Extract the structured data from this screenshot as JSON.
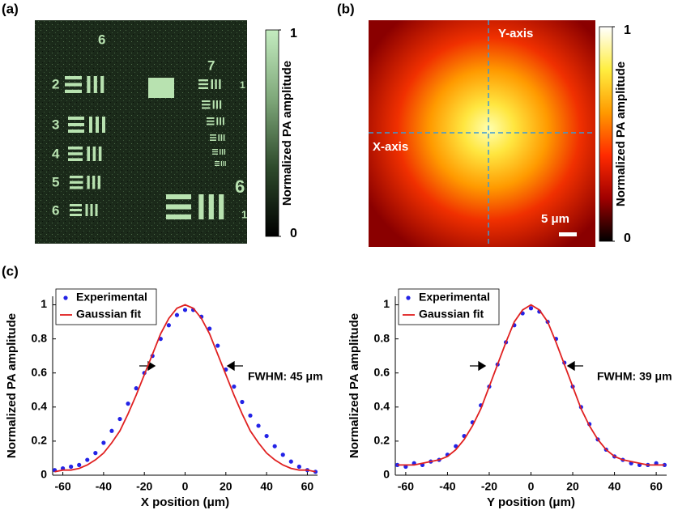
{
  "chart_data": [
    {
      "type": "image",
      "label": "(a)",
      "target_labels": [
        "6",
        "2",
        "3",
        "4",
        "5",
        "6",
        "7",
        "1",
        "6",
        "1"
      ],
      "colorbar": {
        "label": "Normalized PA amplitude",
        "lim": [
          0,
          1
        ],
        "ticks": [
          0,
          1
        ],
        "colors": [
          "#000000",
          "#2e4a2c",
          "#7fa87a",
          "#c4ecc0"
        ]
      }
    },
    {
      "type": "heatmap",
      "label": "(b)",
      "annotations": [
        "Y-axis",
        "X-axis"
      ],
      "scale_bar": "5 μm",
      "colorbar": {
        "label": "Normalized PA amplitude",
        "lim": [
          0,
          1
        ],
        "ticks": [
          0,
          1
        ],
        "colors": [
          "#000000",
          "#a00000",
          "#ff2a00",
          "#ff9a00",
          "#ffee40",
          "#ffffff"
        ]
      }
    },
    {
      "type": "scatter",
      "label": "(c)",
      "xlabel": "X position (μm)",
      "ylabel": "Normalized PA amplitude",
      "annotation": "FWHM: 45 μm",
      "xlim": [
        -65,
        65
      ],
      "ylim": [
        0,
        1.05
      ],
      "xticks": [
        -60,
        -40,
        -20,
        0,
        20,
        40,
        60
      ],
      "yticks": [
        0,
        0.2,
        0.4,
        0.6,
        0.8,
        1
      ],
      "series": [
        {
          "name": "Experimental",
          "mode": "markers",
          "color": "#2323e6",
          "x": [
            -64,
            -60,
            -56,
            -52,
            -48,
            -44,
            -40,
            -36,
            -32,
            -28,
            -24,
            -20,
            -16,
            -12,
            -8,
            -4,
            0,
            4,
            8,
            12,
            16,
            20,
            24,
            28,
            32,
            36,
            40,
            44,
            48,
            52,
            56,
            60,
            64
          ],
          "values": [
            0.03,
            0.04,
            0.05,
            0.06,
            0.09,
            0.13,
            0.19,
            0.26,
            0.33,
            0.42,
            0.51,
            0.6,
            0.7,
            0.8,
            0.88,
            0.94,
            0.97,
            0.97,
            0.93,
            0.86,
            0.76,
            0.62,
            0.52,
            0.43,
            0.35,
            0.29,
            0.23,
            0.17,
            0.12,
            0.08,
            0.05,
            0.03,
            0.02
          ]
        },
        {
          "name": "Gaussian fit",
          "mode": "line",
          "color": "#e02020",
          "x": [
            -64,
            -60,
            -56,
            -52,
            -48,
            -44,
            -40,
            -36,
            -32,
            -28,
            -24,
            -20,
            -16,
            -12,
            -8,
            -4,
            0,
            4,
            8,
            12,
            16,
            20,
            24,
            28,
            32,
            36,
            40,
            44,
            48,
            52,
            56,
            60,
            64
          ],
          "values": [
            0.02,
            0.03,
            0.03,
            0.04,
            0.06,
            0.09,
            0.13,
            0.19,
            0.26,
            0.36,
            0.47,
            0.59,
            0.71,
            0.83,
            0.92,
            0.98,
            1,
            0.98,
            0.92,
            0.83,
            0.71,
            0.59,
            0.47,
            0.36,
            0.26,
            0.19,
            0.13,
            0.09,
            0.06,
            0.04,
            0.03,
            0.03,
            0.02
          ]
        }
      ]
    },
    {
      "type": "scatter",
      "xlabel": "Y position (μm)",
      "ylabel": "Normalized PA amplitude",
      "annotation": "FWHM: 39 μm",
      "xlim": [
        -65,
        65
      ],
      "ylim": [
        0,
        1.05
      ],
      "xticks": [
        -60,
        -40,
        -20,
        0,
        20,
        40,
        60
      ],
      "yticks": [
        0,
        0.2,
        0.4,
        0.6,
        0.8,
        1
      ],
      "series": [
        {
          "name": "Experimental",
          "mode": "markers",
          "color": "#2323e6",
          "x": [
            -64,
            -60,
            -56,
            -52,
            -48,
            -44,
            -40,
            -36,
            -32,
            -28,
            -24,
            -20,
            -16,
            -12,
            -8,
            -4,
            0,
            4,
            8,
            12,
            16,
            20,
            24,
            28,
            32,
            36,
            40,
            44,
            48,
            52,
            56,
            60,
            64
          ],
          "values": [
            0.06,
            0.05,
            0.07,
            0.06,
            0.08,
            0.09,
            0.12,
            0.17,
            0.23,
            0.31,
            0.41,
            0.52,
            0.65,
            0.78,
            0.88,
            0.95,
            0.98,
            0.96,
            0.9,
            0.8,
            0.66,
            0.52,
            0.4,
            0.3,
            0.21,
            0.15,
            0.11,
            0.09,
            0.07,
            0.06,
            0.06,
            0.07,
            0.06
          ]
        },
        {
          "name": "Gaussian fit",
          "mode": "line",
          "color": "#e02020",
          "x": [
            -64,
            -60,
            -56,
            -52,
            -48,
            -44,
            -40,
            -36,
            -32,
            -28,
            -24,
            -20,
            -16,
            -12,
            -8,
            -4,
            0,
            4,
            8,
            12,
            16,
            20,
            24,
            28,
            32,
            36,
            40,
            44,
            48,
            52,
            56,
            60,
            64
          ],
          "values": [
            0.06,
            0.06,
            0.06,
            0.07,
            0.08,
            0.09,
            0.11,
            0.15,
            0.21,
            0.29,
            0.39,
            0.52,
            0.65,
            0.78,
            0.9,
            0.97,
            1,
            0.97,
            0.9,
            0.78,
            0.65,
            0.52,
            0.39,
            0.29,
            0.21,
            0.15,
            0.11,
            0.09,
            0.08,
            0.07,
            0.06,
            0.06,
            0.06
          ]
        }
      ]
    }
  ]
}
